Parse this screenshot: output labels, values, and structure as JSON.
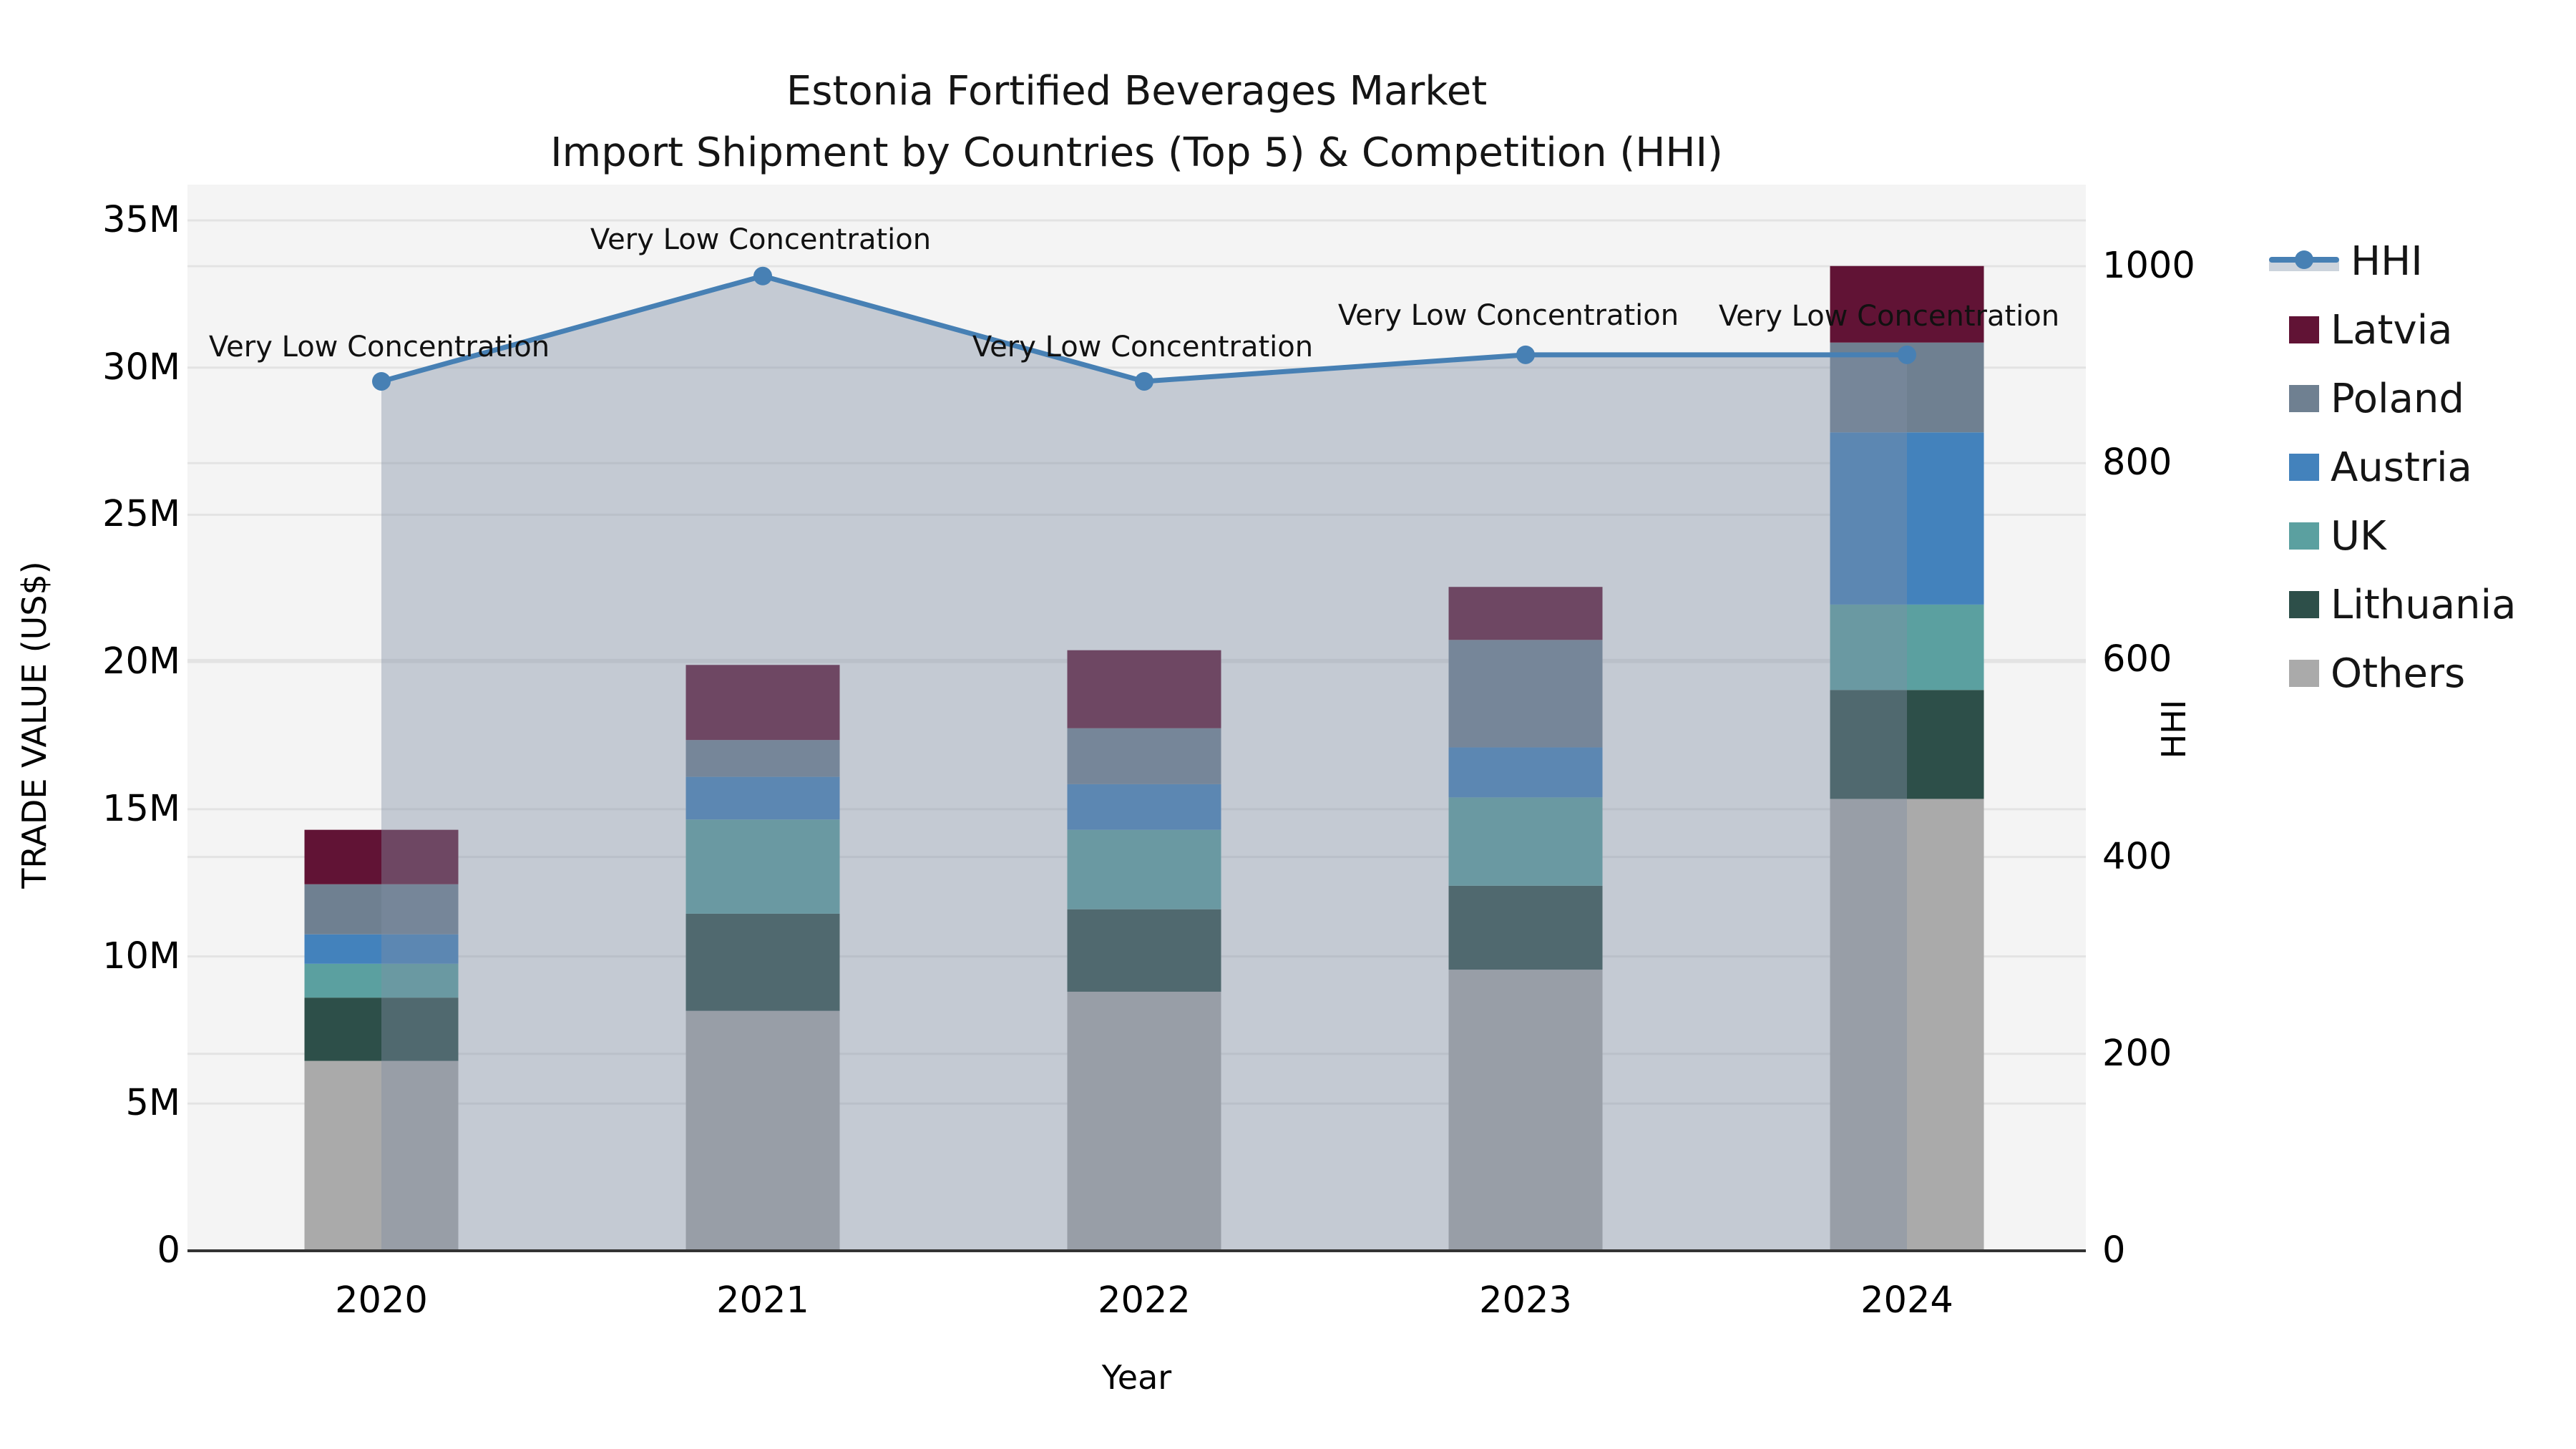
{
  "title": {
    "line1": "Estonia Fortified Beverages Market",
    "line2": "Import Shipment by Countries (Top 5) & Competition (HHI)"
  },
  "axes": {
    "x_label": "Year",
    "y_left_label": "TRADE VALUE (US$)",
    "y_right_label": "HHI",
    "y_left_ticks": [
      {
        "label": "0",
        "value": 0
      },
      {
        "label": "5M",
        "value": 5
      },
      {
        "label": "10M",
        "value": 10
      },
      {
        "label": "15M",
        "value": 15
      },
      {
        "label": "20M",
        "value": 20
      },
      {
        "label": "25M",
        "value": 25
      },
      {
        "label": "30M",
        "value": 30
      },
      {
        "label": "35M",
        "value": 35
      }
    ],
    "y_right_ticks": [
      {
        "label": "0",
        "value": 0
      },
      {
        "label": "200",
        "value": 200
      },
      {
        "label": "400",
        "value": 400
      },
      {
        "label": "600",
        "value": 600
      },
      {
        "label": "800",
        "value": 800
      },
      {
        "label": "1000",
        "value": 1000
      }
    ],
    "y_left_max_millions": 35,
    "y_right_max": 1000,
    "grid": true
  },
  "chart_data": {
    "type": [
      "bar",
      "line"
    ],
    "categories": [
      "2020",
      "2021",
      "2022",
      "2023",
      "2024"
    ],
    "bar_units": "millions USD",
    "stack_order_bottom_to_top": [
      "Others",
      "Lithuania",
      "UK",
      "Austria",
      "Poland",
      "Latvia"
    ],
    "series": [
      {
        "name": "Others",
        "color": "#aaaaaa",
        "values": [
          6.45,
          8.15,
          8.8,
          9.55,
          15.35
        ]
      },
      {
        "name": "Lithuania",
        "color": "#2d4f49",
        "values": [
          2.15,
          3.3,
          2.8,
          2.85,
          3.7
        ]
      },
      {
        "name": "UK",
        "color": "#5ba0a0",
        "values": [
          1.15,
          3.2,
          2.7,
          3.0,
          2.9
        ]
      },
      {
        "name": "Austria",
        "color": "#4382bc",
        "values": [
          1.0,
          1.45,
          1.55,
          1.7,
          5.85
        ]
      },
      {
        "name": "Poland",
        "color": "#6f8091",
        "values": [
          1.7,
          1.25,
          1.9,
          3.65,
          3.05
        ]
      },
      {
        "name": "Latvia",
        "color": "#611335",
        "values": [
          1.85,
          2.55,
          2.65,
          1.8,
          2.6
        ]
      }
    ],
    "bar_totals_millions": [
      14.3,
      19.9,
      20.4,
      22.55,
      33.45
    ],
    "hhi_line": {
      "name": "HHI",
      "color": "#4780b4",
      "area_fill": "rgba(128,142,165,0.42)",
      "values": [
        883,
        990,
        883,
        910,
        910
      ]
    },
    "annotations": [
      {
        "text": "Very Low Concentration",
        "year": "2020"
      },
      {
        "text": "Very Low Concentration",
        "year": "2021"
      },
      {
        "text": "Very Low Concentration",
        "year": "2022"
      },
      {
        "text": "Very Low Concentration",
        "year": "2023"
      },
      {
        "text": "Very Low Concentration",
        "year": "2024"
      }
    ],
    "legend_position": "right"
  },
  "legend": {
    "items": [
      {
        "label": "HHI",
        "symbol": "line"
      },
      {
        "label": "Latvia",
        "symbol": "patch"
      },
      {
        "label": "Poland",
        "symbol": "patch"
      },
      {
        "label": "Austria",
        "symbol": "patch"
      },
      {
        "label": "UK",
        "symbol": "patch"
      },
      {
        "label": "Lithuania",
        "symbol": "patch"
      },
      {
        "label": "Others",
        "symbol": "patch"
      }
    ],
    "band_color": "#ccd3dc"
  },
  "colors": {
    "plot_background": "#f4f4f4",
    "gridline": "#e3e3e3",
    "axis_line": "#333333",
    "text": "#000000"
  }
}
